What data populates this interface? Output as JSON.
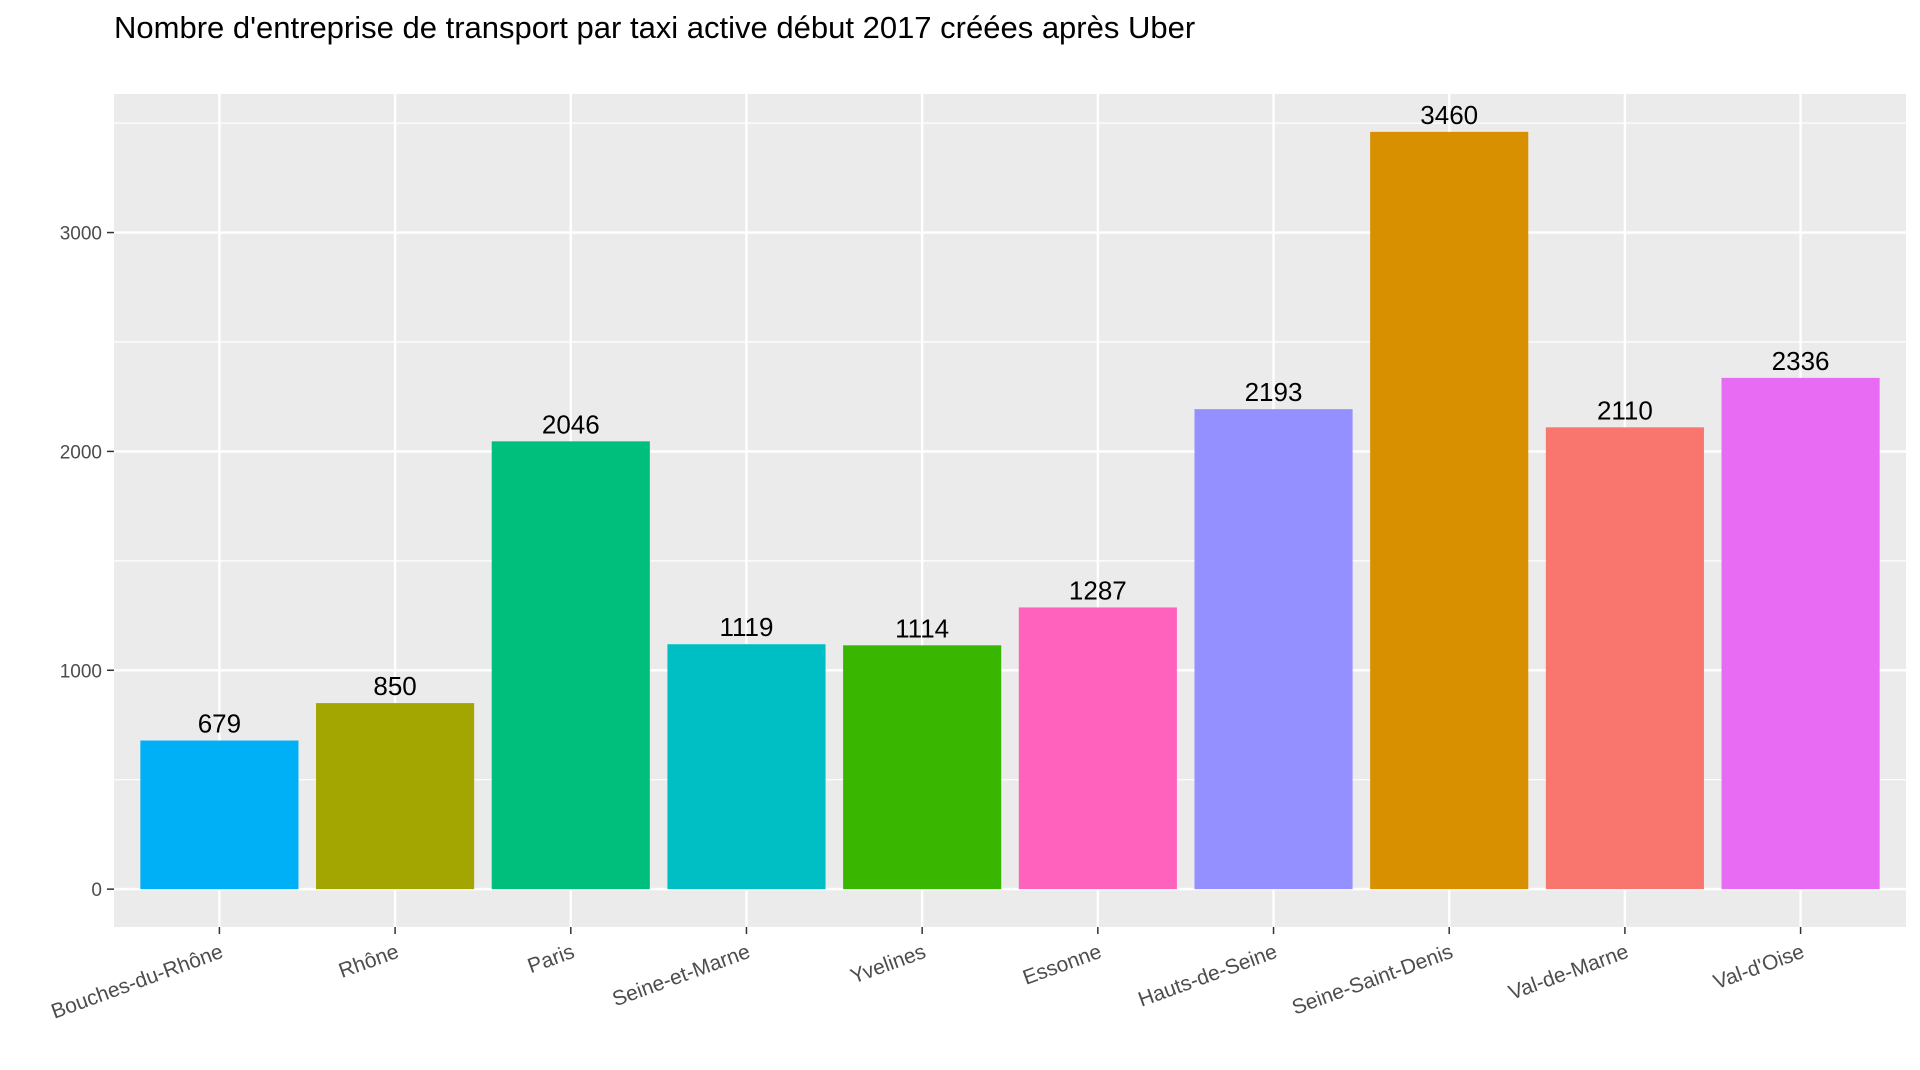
{
  "chart_data": {
    "type": "bar",
    "title": "Nombre d'entreprise de transport par taxi active début 2017 créées après Uber",
    "xlabel": "",
    "ylabel": "",
    "categories": [
      "Bouches-du-Rhône",
      "Rhône",
      "Paris",
      "Seine-et-Marne",
      "Yvelines",
      "Essonne",
      "Hauts-de-Seine",
      "Seine-Saint-Denis",
      "Val-de-Marne",
      "Val-d'Oise"
    ],
    "values": [
      679,
      850,
      2046,
      1119,
      1114,
      1287,
      2193,
      3460,
      2110,
      2336
    ],
    "colors": [
      "#00B0F6",
      "#A3A500",
      "#00BF7D",
      "#00BFC4",
      "#39B600",
      "#FF62BC",
      "#9590FF",
      "#D89000",
      "#F8766D",
      "#E76BF3"
    ],
    "ylim": [
      -173,
      3633
    ],
    "yticks": [
      0,
      1000,
      2000,
      3000
    ],
    "yticks_minor": [
      500,
      1500,
      2500,
      3500
    ],
    "grid": true,
    "legend": "none",
    "panel_background": "#EBEBEB"
  }
}
